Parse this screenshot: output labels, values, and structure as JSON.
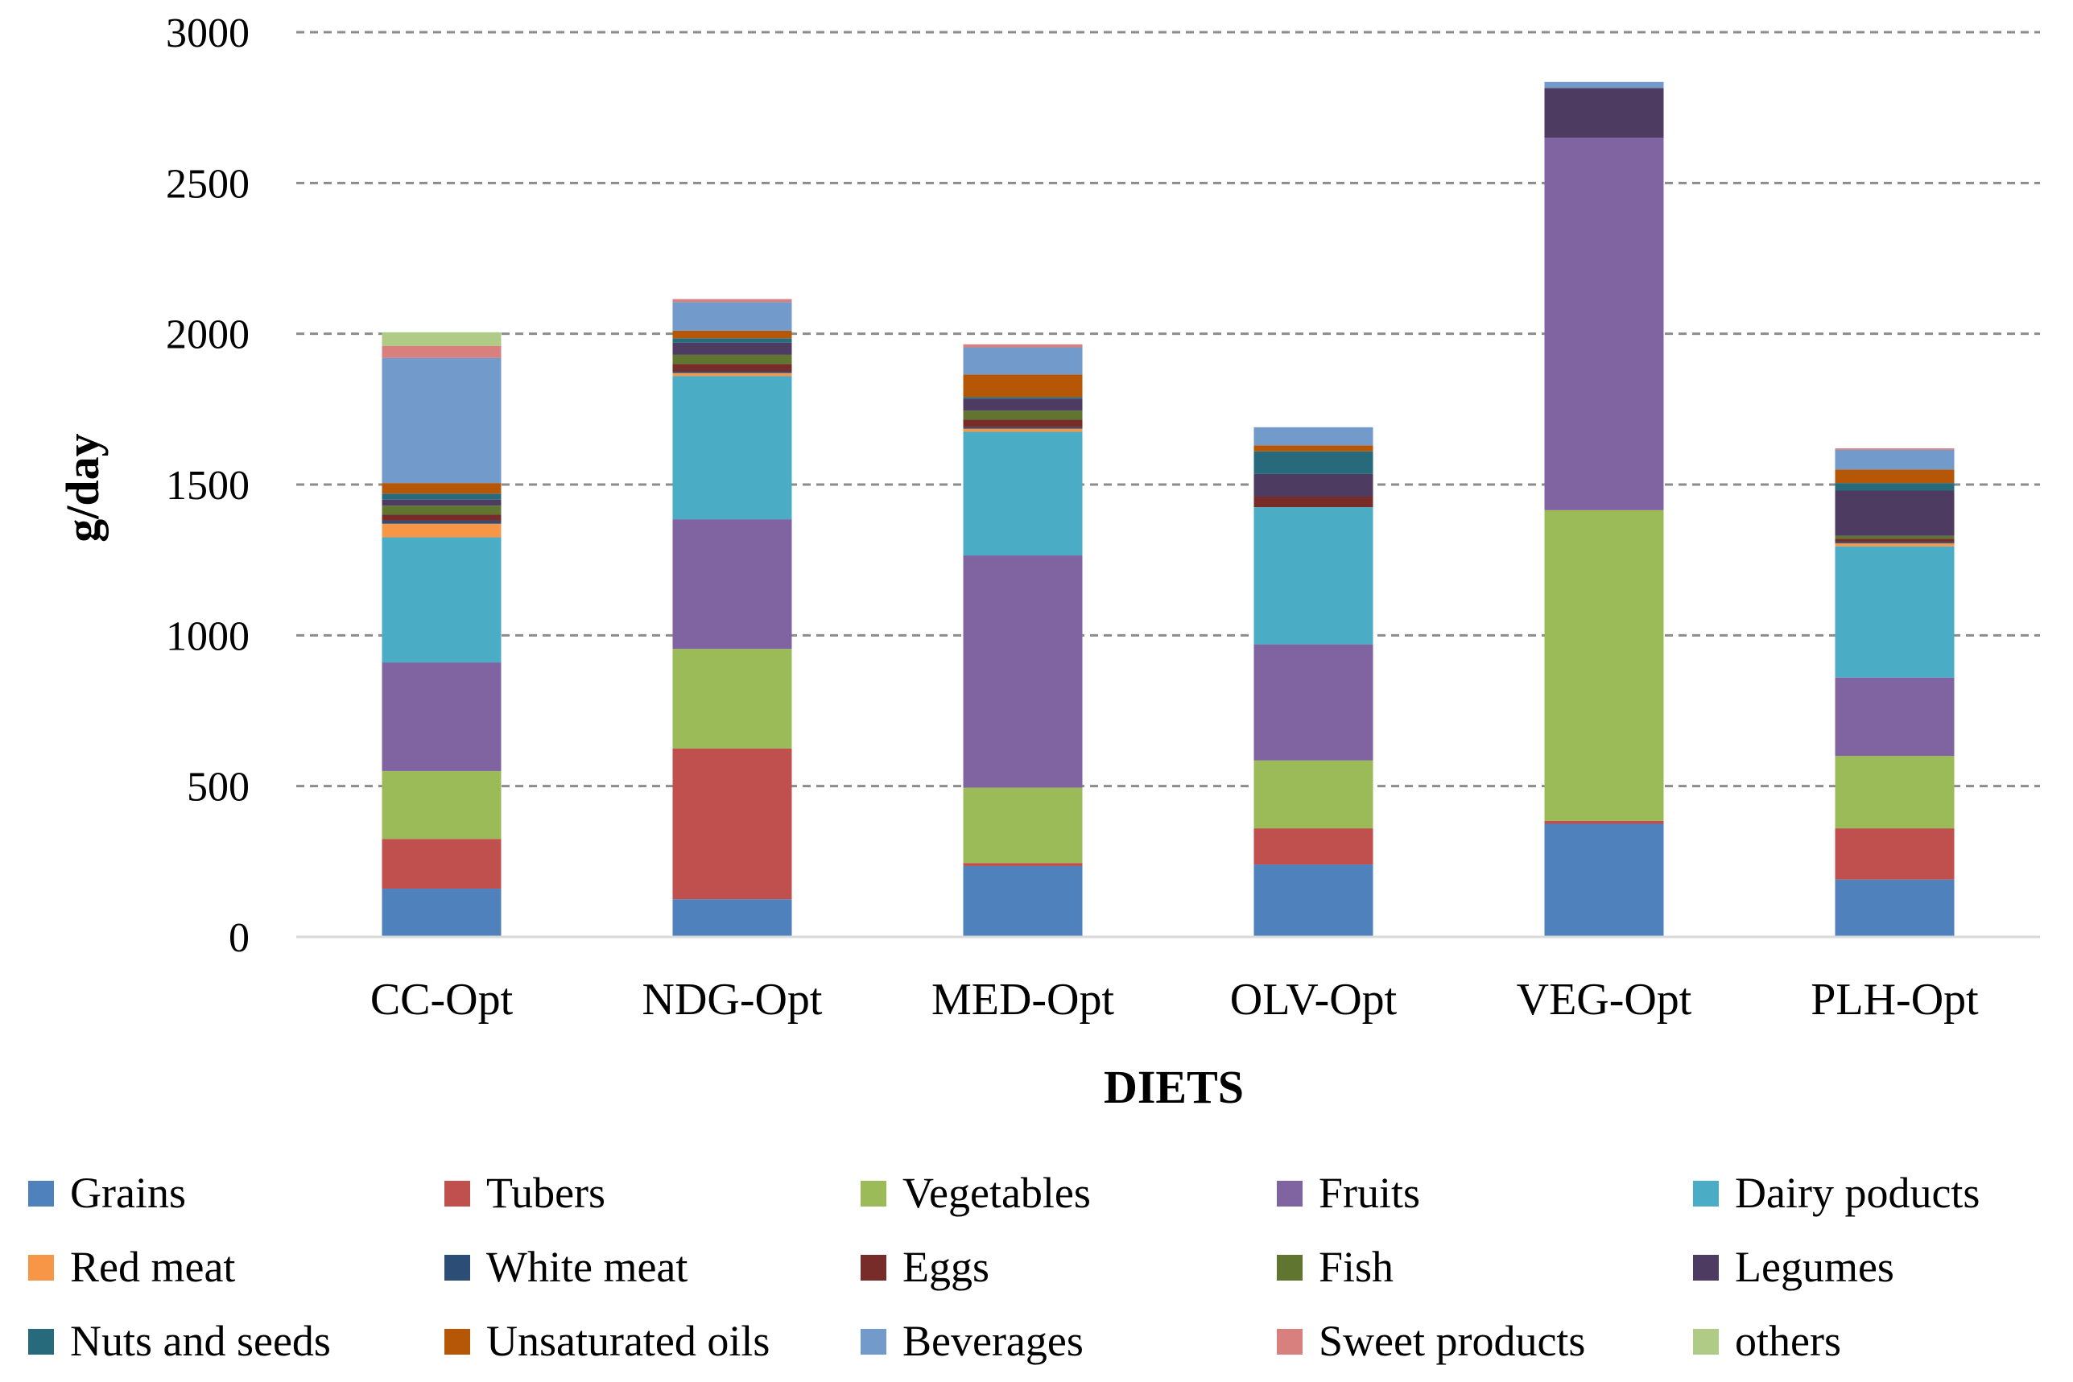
{
  "chart_data": {
    "type": "bar",
    "stacked": true,
    "title": "",
    "xlabel": "DIETS",
    "ylabel": "g/day",
    "ylim": [
      0,
      3000
    ],
    "yticks": [
      0,
      500,
      1000,
      1500,
      2000,
      2500,
      3000
    ],
    "grid": true,
    "legend_position": "bottom",
    "categories": [
      "CC-Opt",
      "NDG-Opt",
      "MED-Opt",
      "OLV-Opt",
      "VEG-Opt",
      "PLH-Opt"
    ],
    "series": [
      {
        "name": "Grains",
        "color": "#4F81BD",
        "values": [
          160,
          125,
          235,
          240,
          375,
          190
        ]
      },
      {
        "name": "Tubers",
        "color": "#C0504D",
        "values": [
          165,
          500,
          10,
          120,
          10,
          170
        ]
      },
      {
        "name": "Vegetables",
        "color": "#9BBB59",
        "values": [
          225,
          330,
          250,
          225,
          1030,
          240
        ]
      },
      {
        "name": "Fruits",
        "color": "#8064A2",
        "values": [
          360,
          430,
          770,
          385,
          1235,
          260
        ]
      },
      {
        "name": "Dairy poducts",
        "color": "#4BACC6",
        "values": [
          415,
          475,
          410,
          455,
          0,
          435
        ]
      },
      {
        "name": "Red meat",
        "color": "#F79646",
        "values": [
          45,
          10,
          10,
          0,
          0,
          10
        ]
      },
      {
        "name": "White meat",
        "color": "#2C4D75",
        "values": [
          10,
          5,
          5,
          0,
          0,
          5
        ]
      },
      {
        "name": "Eggs",
        "color": "#772C2A",
        "values": [
          20,
          25,
          25,
          35,
          0,
          10
        ]
      },
      {
        "name": "Fish",
        "color": "#5F7530",
        "values": [
          30,
          30,
          30,
          0,
          0,
          10
        ]
      },
      {
        "name": "Legumes",
        "color": "#4D3B62",
        "values": [
          20,
          40,
          40,
          75,
          165,
          150
        ]
      },
      {
        "name": "Nuts and seeds",
        "color": "#276A7C",
        "values": [
          20,
          15,
          5,
          75,
          0,
          25
        ]
      },
      {
        "name": "Unsaturated oils",
        "color": "#B65708",
        "values": [
          35,
          25,
          75,
          20,
          0,
          45
        ]
      },
      {
        "name": "Beverages",
        "color": "#729ACA",
        "values": [
          415,
          95,
          90,
          60,
          20,
          65
        ]
      },
      {
        "name": "Sweet products",
        "color": "#D7807E",
        "values": [
          40,
          10,
          10,
          0,
          0,
          5
        ]
      },
      {
        "name": "others",
        "color": "#B0CB86",
        "values": [
          45,
          0,
          0,
          0,
          0,
          0
        ]
      }
    ]
  }
}
